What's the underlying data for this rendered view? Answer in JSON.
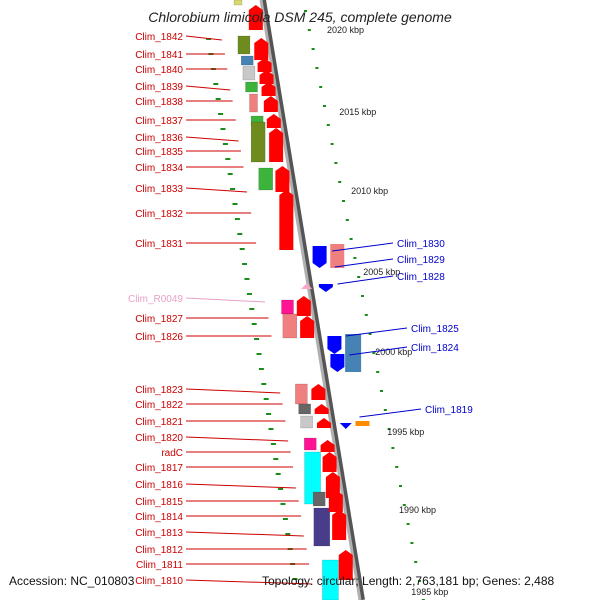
{
  "title": "Chlorobium limicola DSM 245, complete genome",
  "footer": {
    "accession": "Accession: NC_010803",
    "summary": "Topology: circular; Length: 2,763,181 bp; Genes: 2,488"
  },
  "colors": {
    "backbone": "#8a8a8a",
    "tick": "#1a8c1a",
    "forward_gene": "#ff0000",
    "reverse_gene": "#0000ff",
    "left_label": "#cc0000",
    "right_label": "#0000cc",
    "rna_label": "#e8a0c8"
  },
  "scale_labels": [
    "2020 kbp",
    "2015 kbp",
    "2010 kbp",
    "2005 kbp",
    "2000 kbp",
    "1995 kbp",
    "1990 kbp",
    "1985 kbp"
  ],
  "genes_left": [
    "Clim_1842",
    "Clim_1841",
    "Clim_1840",
    "Clim_1839",
    "Clim_1838",
    "Clim_1837",
    "Clim_1836",
    "Clim_1835",
    "Clim_1834",
    "Clim_1833",
    "Clim_1832",
    "Clim_1831",
    "Clim_R0049",
    "Clim_1827",
    "Clim_1826",
    "Clim_1823",
    "Clim_1822",
    "Clim_1821",
    "Clim_1820",
    "radC",
    "Clim_1817",
    "Clim_1816",
    "Clim_1815",
    "Clim_1814",
    "Clim_1813",
    "Clim_1812",
    "Clim_1811",
    "Clim_1810"
  ],
  "genes_right": [
    "Clim_1830",
    "Clim_1829",
    "Clim_1828",
    "Clim_1825",
    "Clim_1824",
    "Clim_1819"
  ]
}
